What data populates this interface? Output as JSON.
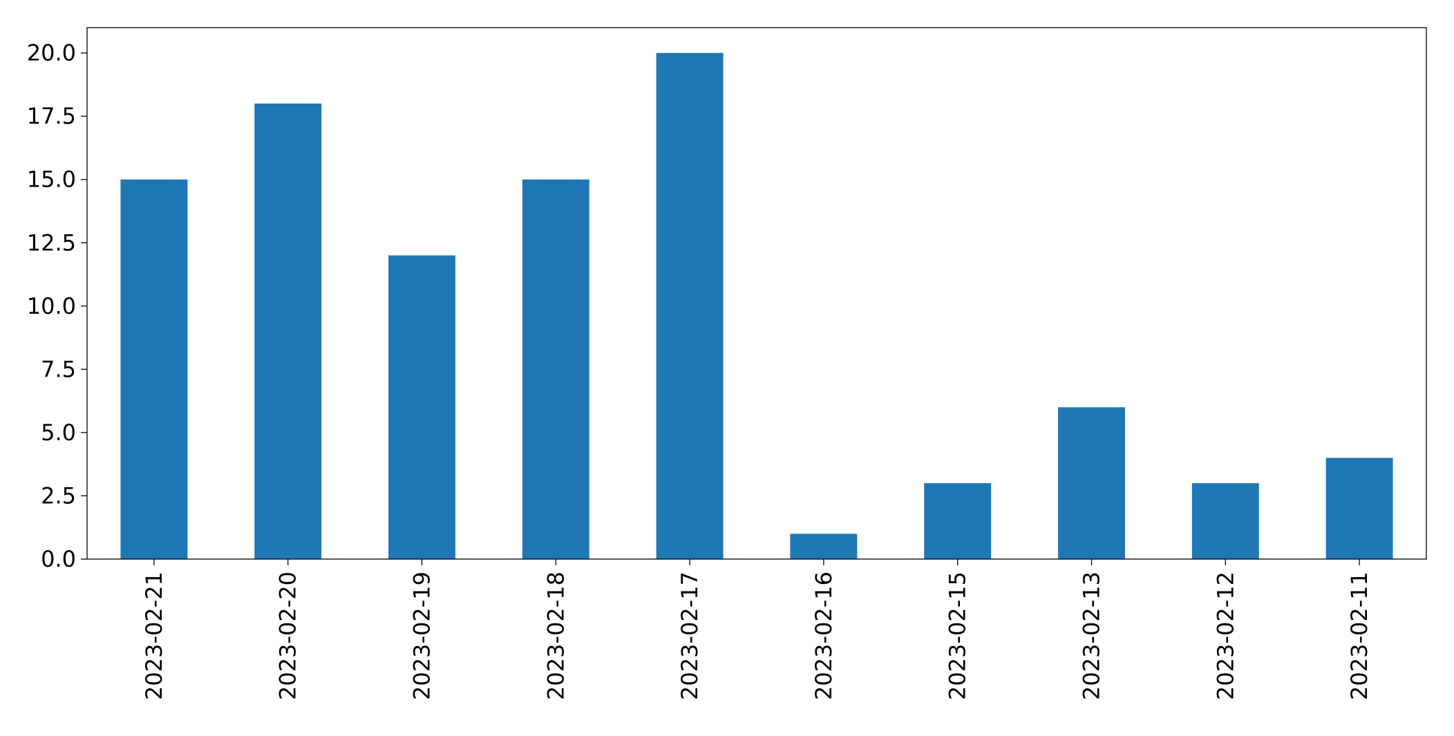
{
  "chart_data": {
    "type": "bar",
    "categories": [
      "2023-02-21",
      "2023-02-20",
      "2023-02-19",
      "2023-02-18",
      "2023-02-17",
      "2023-02-16",
      "2023-02-15",
      "2023-02-13",
      "2023-02-12",
      "2023-02-11"
    ],
    "values": [
      15,
      18,
      12,
      15,
      20,
      1,
      3,
      6,
      3,
      4
    ],
    "color": "#1f77b4",
    "ylim": [
      0,
      21
    ],
    "yticks": [
      {
        "value": 0,
        "label": "0.0"
      },
      2.5,
      {
        "value": 5,
        "label": "5.0"
      },
      7.5,
      {
        "value": 10,
        "label": "10.0"
      },
      12.5,
      {
        "value": 15,
        "label": "15.0"
      },
      17.5,
      {
        "value": 20,
        "label": "20.0"
      }
    ],
    "grid": false
  }
}
